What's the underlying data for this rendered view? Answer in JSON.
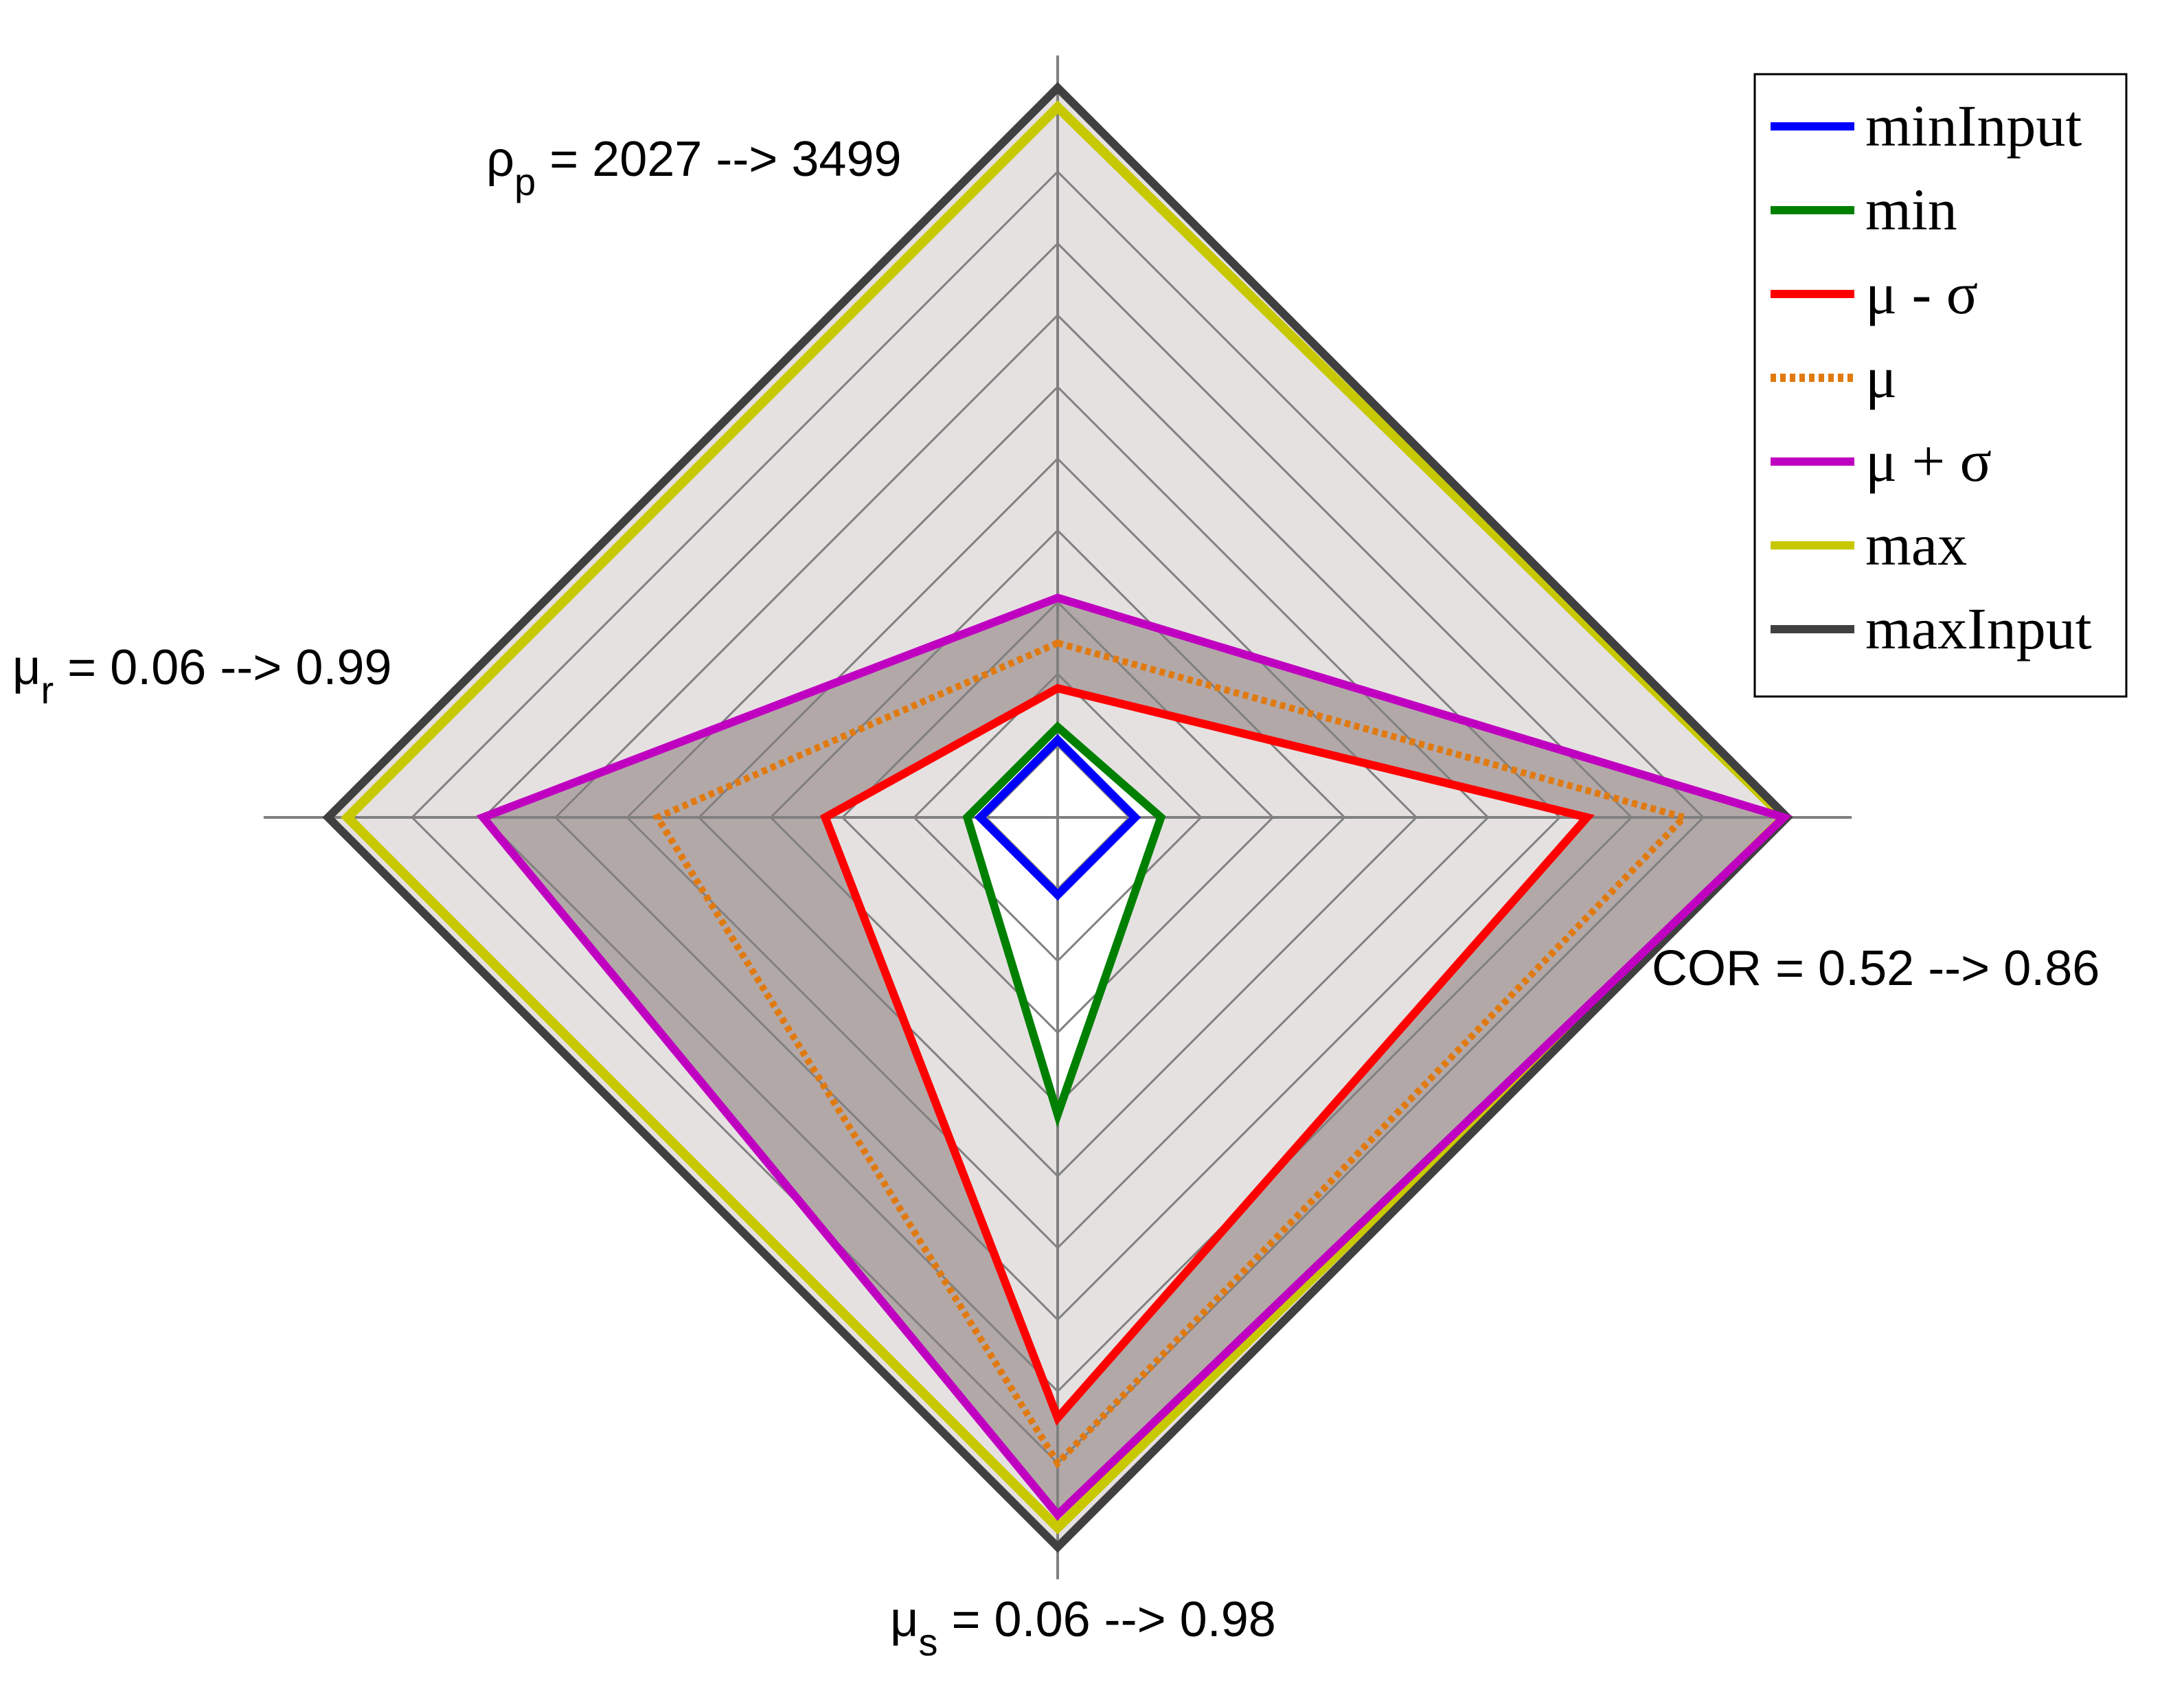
{
  "chart_data": {
    "type": "radar",
    "axes": [
      {
        "symbol": "ρ",
        "subscript": "p",
        "range_text": " = 2027 --> 3499",
        "min": 2027,
        "max": 3499
      },
      {
        "symbol": "COR",
        "subscript": "",
        "range_text": " = 0.52 --> 0.86",
        "min": 0.52,
        "max": 0.86
      },
      {
        "symbol": "μ",
        "subscript": "s",
        "range_text": " = 0.06 --> 0.98",
        "min": 0.06,
        "max": 0.98
      },
      {
        "symbol": "μ",
        "subscript": "r",
        "range_text": " = 0.06 --> 0.99",
        "min": 0.06,
        "max": 0.99
      }
    ],
    "rings": 9,
    "grid": true,
    "legend_position": "top-right",
    "series": [
      {
        "name": "minInput",
        "color": "#0000ff",
        "dash": "solid",
        "values": [
          0.12,
          0.12,
          0.12,
          0.12
        ]
      },
      {
        "name": "min",
        "color": "#008000",
        "dash": "solid",
        "values": [
          0.14,
          0.16,
          0.46,
          0.14
        ]
      },
      {
        "name": "μ - σ",
        "color": "#ff0000",
        "dash": "solid",
        "values": [
          0.2,
          0.82,
          0.93,
          0.36
        ]
      },
      {
        "name": "μ",
        "color": "#e07a10",
        "dash": "dotted",
        "values": [
          0.27,
          0.97,
          1.0,
          0.62
        ]
      },
      {
        "name": "μ + σ",
        "color": "#c000c0",
        "dash": "solid",
        "values": [
          0.34,
          1.125,
          1.08,
          0.89
        ]
      },
      {
        "name": "max",
        "color": "#c8c800",
        "dash": "solid",
        "values": [
          1.1,
          1.125,
          1.1,
          1.1
        ]
      },
      {
        "name": "maxInput",
        "color": "#404040",
        "dash": "solid",
        "values": [
          1.13,
          1.13,
          1.13,
          1.13
        ]
      }
    ],
    "band": {
      "from": "μ - σ",
      "to": "μ + σ",
      "color": "#b3a8a8"
    },
    "background_color": "#e5e1e1"
  }
}
